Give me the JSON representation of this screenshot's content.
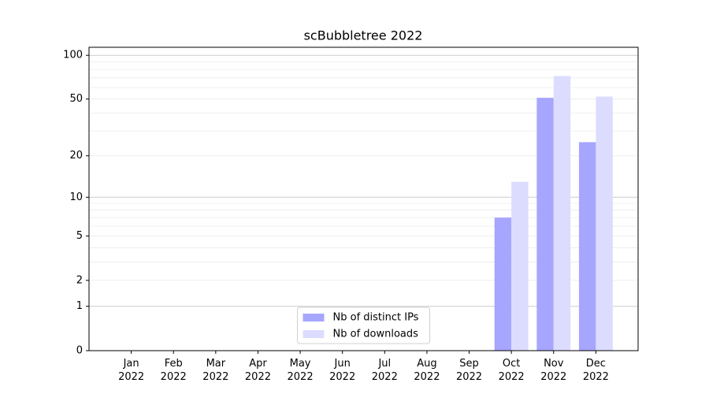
{
  "chart_data": {
    "type": "bar",
    "title": "scBubbletree 2022",
    "categories": [
      "Jan 2022",
      "Feb 2022",
      "Mar 2022",
      "Apr 2022",
      "May 2022",
      "Jun 2022",
      "Jul 2022",
      "Aug 2022",
      "Sep 2022",
      "Oct 2022",
      "Nov 2022",
      "Dec 2022"
    ],
    "series": [
      {
        "name": "Nb of distinct IPs",
        "color": "#a6a6ff",
        "values": [
          0,
          0,
          0,
          0,
          0,
          0,
          0,
          0,
          0,
          7,
          51,
          25
        ]
      },
      {
        "name": "Nb of downloads",
        "color": "#dcdcff",
        "values": [
          0,
          0,
          0,
          0,
          0,
          0,
          0,
          0,
          0,
          13,
          72,
          52
        ]
      }
    ],
    "yscale": "log1p",
    "ylim": [
      0,
      113.5
    ],
    "yticks": [
      0,
      1,
      2,
      5,
      10,
      20,
      50,
      100
    ],
    "grid_major": [
      1,
      10,
      100
    ],
    "grid_minor": [
      2,
      3,
      4,
      5,
      6,
      7,
      8,
      9,
      20,
      30,
      40,
      50,
      60,
      70,
      80,
      90
    ],
    "legend": "lower center"
  }
}
